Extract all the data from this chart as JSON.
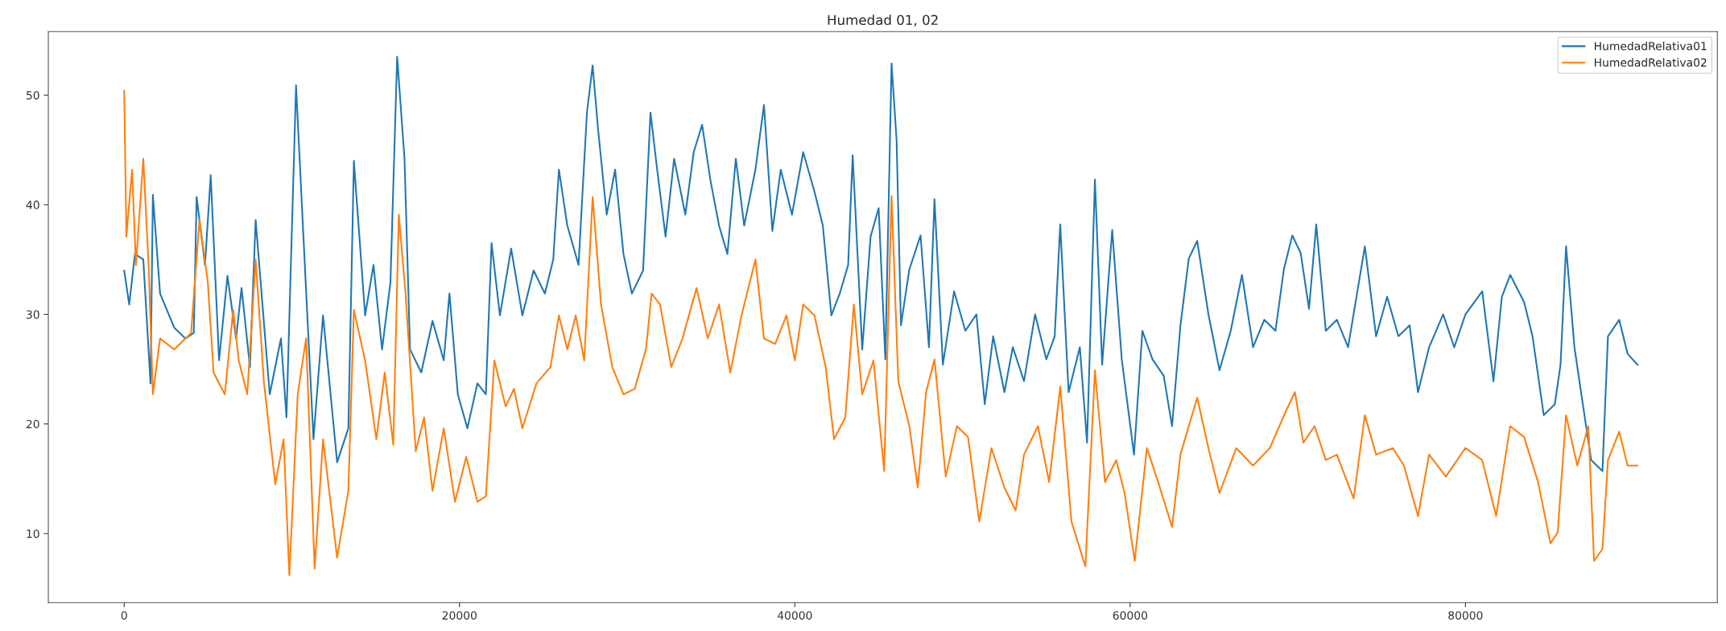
{
  "chart_data": {
    "type": "line",
    "title": "Humedad 01, 02",
    "xlim": [
      -4525,
      95025
    ],
    "xticks": [
      0,
      20000,
      40000,
      60000,
      80000
    ],
    "ylim": [
      3.7,
      55.8
    ],
    "yticks": [
      10,
      20,
      30,
      40,
      50
    ],
    "grid": false,
    "legend": "top right",
    "series": [
      {
        "name": "HumedadRelativa01",
        "color": "#1f77b4",
        "x": [
          0,
          300,
          640,
          1140,
          1570,
          1710,
          2140,
          2980,
          3650,
          4150,
          4320,
          4820,
          5160,
          5660,
          6160,
          6670,
          7000,
          7500,
          7840,
          8680,
          9350,
          9680,
          10250,
          10690,
          11290,
          11860,
          12700,
          13370,
          13700,
          14370,
          14870,
          15380,
          15880,
          16280,
          16720,
          17050,
          17720,
          18390,
          19060,
          19400,
          19900,
          20470,
          21070,
          21570,
          21910,
          22410,
          23080,
          23750,
          24420,
          25090,
          25590,
          25930,
          26430,
          27100,
          27600,
          27940,
          28270,
          28780,
          29280,
          29780,
          30280,
          30950,
          31390,
          31790,
          32290,
          32800,
          33470,
          33970,
          34470,
          34970,
          35480,
          35980,
          36480,
          36980,
          37650,
          38160,
          38660,
          39160,
          39830,
          40500,
          41170,
          41670,
          42180,
          42680,
          43180,
          43450,
          44020,
          44520,
          45000,
          45400,
          45770,
          46070,
          46330,
          46830,
          47500,
          48000,
          48330,
          48830,
          49500,
          50170,
          50830,
          51330,
          51830,
          52500,
          53000,
          53670,
          54330,
          55000,
          55500,
          55830,
          56330,
          57000,
          57430,
          57900,
          58330,
          58930,
          59500,
          60230,
          60730,
          61330,
          62000,
          62500,
          63000,
          63500,
          64000,
          64670,
          65330,
          66000,
          66670,
          67330,
          68000,
          68670,
          69170,
          69670,
          70170,
          70670,
          71100,
          71670,
          72330,
          73000,
          74000,
          74670,
          75330,
          76000,
          76670,
          77170,
          77830,
          78670,
          79330,
          80000,
          81000,
          81670,
          82170,
          82670,
          83500,
          84000,
          84670,
          85330,
          85670,
          86000,
          86500,
          87000,
          87500,
          88170,
          88500,
          89170,
          89670,
          90270
        ],
        "values": [
          34,
          30.9,
          35.5,
          35,
          23.7,
          40.9,
          31.9,
          28.8,
          27.8,
          28.3,
          40.7,
          34.5,
          42.7,
          25.8,
          33.5,
          27.8,
          32.4,
          25.2,
          38.6,
          22.7,
          27.8,
          20.6,
          50.9,
          37.1,
          18.6,
          29.9,
          16.5,
          19.6,
          44,
          29.9,
          34.5,
          26.8,
          32.9,
          53.5,
          44.2,
          26.8,
          24.7,
          29.4,
          25.8,
          31.9,
          22.7,
          19.6,
          23.7,
          22.7,
          36.5,
          29.9,
          36,
          29.9,
          34,
          31.9,
          35,
          43.2,
          38.1,
          34.5,
          48.4,
          52.7,
          46.8,
          39.1,
          43.2,
          35.5,
          31.9,
          34,
          48.4,
          43.2,
          37.1,
          44.2,
          39.1,
          44.8,
          47.3,
          42.2,
          38.1,
          35.5,
          44.2,
          38.1,
          43.2,
          49.1,
          37.6,
          43.2,
          39.1,
          44.8,
          41.2,
          38.1,
          29.9,
          31.9,
          34.5,
          44.5,
          26.8,
          37.1,
          39.7,
          25.9,
          52.9,
          45.9,
          29,
          34.1,
          37.2,
          27,
          40.5,
          25.4,
          32.1,
          28.5,
          30,
          21.8,
          28,
          22.9,
          27,
          23.9,
          30,
          25.9,
          28,
          38.2,
          22.9,
          27,
          18.3,
          42.3,
          25.4,
          37.7,
          25.9,
          17.2,
          28.5,
          25.9,
          24.4,
          19.8,
          29,
          35.1,
          36.7,
          30,
          24.9,
          28.5,
          33.6,
          27,
          29.5,
          28.5,
          34.1,
          37.2,
          35.6,
          30.5,
          38.2,
          28.5,
          29.5,
          27,
          36.2,
          28,
          31.6,
          28,
          29,
          22.9,
          27,
          30,
          27,
          30,
          32.1,
          23.9,
          31.6,
          33.6,
          31.1,
          28,
          20.8,
          21.8,
          25.4,
          36.2,
          27,
          21.8,
          16.7,
          15.7,
          28,
          29.5,
          26.4,
          25.4
        ]
      },
      {
        "name": "HumedadRelativa02",
        "color": "#ff7f0e",
        "x": [
          0,
          130,
          470,
          700,
          1140,
          1470,
          1710,
          2140,
          2980,
          3990,
          4490,
          4990,
          5330,
          6000,
          6500,
          6830,
          7340,
          7840,
          8340,
          9010,
          9510,
          9850,
          10350,
          10850,
          11360,
          11860,
          12700,
          13370,
          13700,
          14370,
          15040,
          15540,
          16050,
          16380,
          16780,
          17390,
          17890,
          18390,
          19060,
          19730,
          20400,
          21070,
          21570,
          22080,
          22750,
          23250,
          23750,
          24590,
          25430,
          25930,
          26430,
          26930,
          27440,
          27940,
          28440,
          29110,
          29780,
          30450,
          31120,
          31460,
          31960,
          32630,
          33300,
          34140,
          34810,
          35480,
          36150,
          36820,
          37650,
          38160,
          38830,
          39500,
          40000,
          40500,
          41170,
          41840,
          42340,
          43010,
          43520,
          44020,
          44690,
          45330,
          45770,
          46170,
          46830,
          47330,
          47830,
          48330,
          49000,
          49670,
          50330,
          51000,
          51730,
          52500,
          53170,
          53670,
          54500,
          55170,
          55830,
          56500,
          57330,
          57900,
          58500,
          59170,
          59670,
          60270,
          61000,
          61670,
          62500,
          63000,
          64000,
          64670,
          65330,
          66330,
          67330,
          68330,
          69330,
          69830,
          70330,
          71000,
          71670,
          72330,
          73330,
          74000,
          74670,
          75670,
          76330,
          77170,
          77830,
          78830,
          80000,
          81000,
          81830,
          82670,
          83500,
          84330,
          85070,
          85500,
          86000,
          86670,
          87330,
          87670,
          88170,
          88500,
          89170,
          89670,
          90270
        ],
        "values": [
          50.4,
          37.1,
          43.2,
          34.5,
          44.2,
          34,
          22.7,
          27.8,
          26.8,
          28.3,
          38.6,
          32.9,
          24.7,
          22.7,
          30.4,
          25.8,
          22.7,
          35,
          23.7,
          14.5,
          18.6,
          6.2,
          22.7,
          27.8,
          6.8,
          18.6,
          7.8,
          13.9,
          30.4,
          25.8,
          18.6,
          24.7,
          18.1,
          39.1,
          31.9,
          17.5,
          20.6,
          13.9,
          19.6,
          12.9,
          17,
          12.9,
          13.4,
          25.8,
          21.6,
          23.2,
          19.6,
          23.7,
          25.2,
          29.9,
          26.8,
          29.9,
          25.8,
          40.7,
          30.9,
          25.2,
          22.7,
          23.2,
          26.8,
          31.9,
          30.9,
          25.2,
          27.8,
          32.4,
          27.8,
          30.9,
          24.7,
          29.9,
          35,
          27.8,
          27.3,
          29.9,
          25.8,
          30.9,
          29.9,
          25.2,
          18.6,
          20.6,
          30.9,
          22.7,
          25.8,
          15.7,
          40.8,
          23.9,
          19.8,
          14.2,
          22.9,
          25.9,
          15.2,
          19.8,
          18.8,
          11.1,
          17.8,
          14.2,
          12.1,
          17.2,
          19.8,
          14.7,
          23.4,
          11.1,
          7,
          24.9,
          14.7,
          16.7,
          13.7,
          7.5,
          17.8,
          14.7,
          10.6,
          17.2,
          22.4,
          17.8,
          13.7,
          17.8,
          16.2,
          17.8,
          21.3,
          22.9,
          18.3,
          19.8,
          16.7,
          17.2,
          13.2,
          20.8,
          17.2,
          17.8,
          16.2,
          11.6,
          17.2,
          15.2,
          17.8,
          16.7,
          11.6,
          19.8,
          18.8,
          14.7,
          9.1,
          10.1,
          20.8,
          16.2,
          19.8,
          7.5,
          8.6,
          16.7,
          19.3,
          16.2,
          16.2
        ]
      }
    ]
  }
}
